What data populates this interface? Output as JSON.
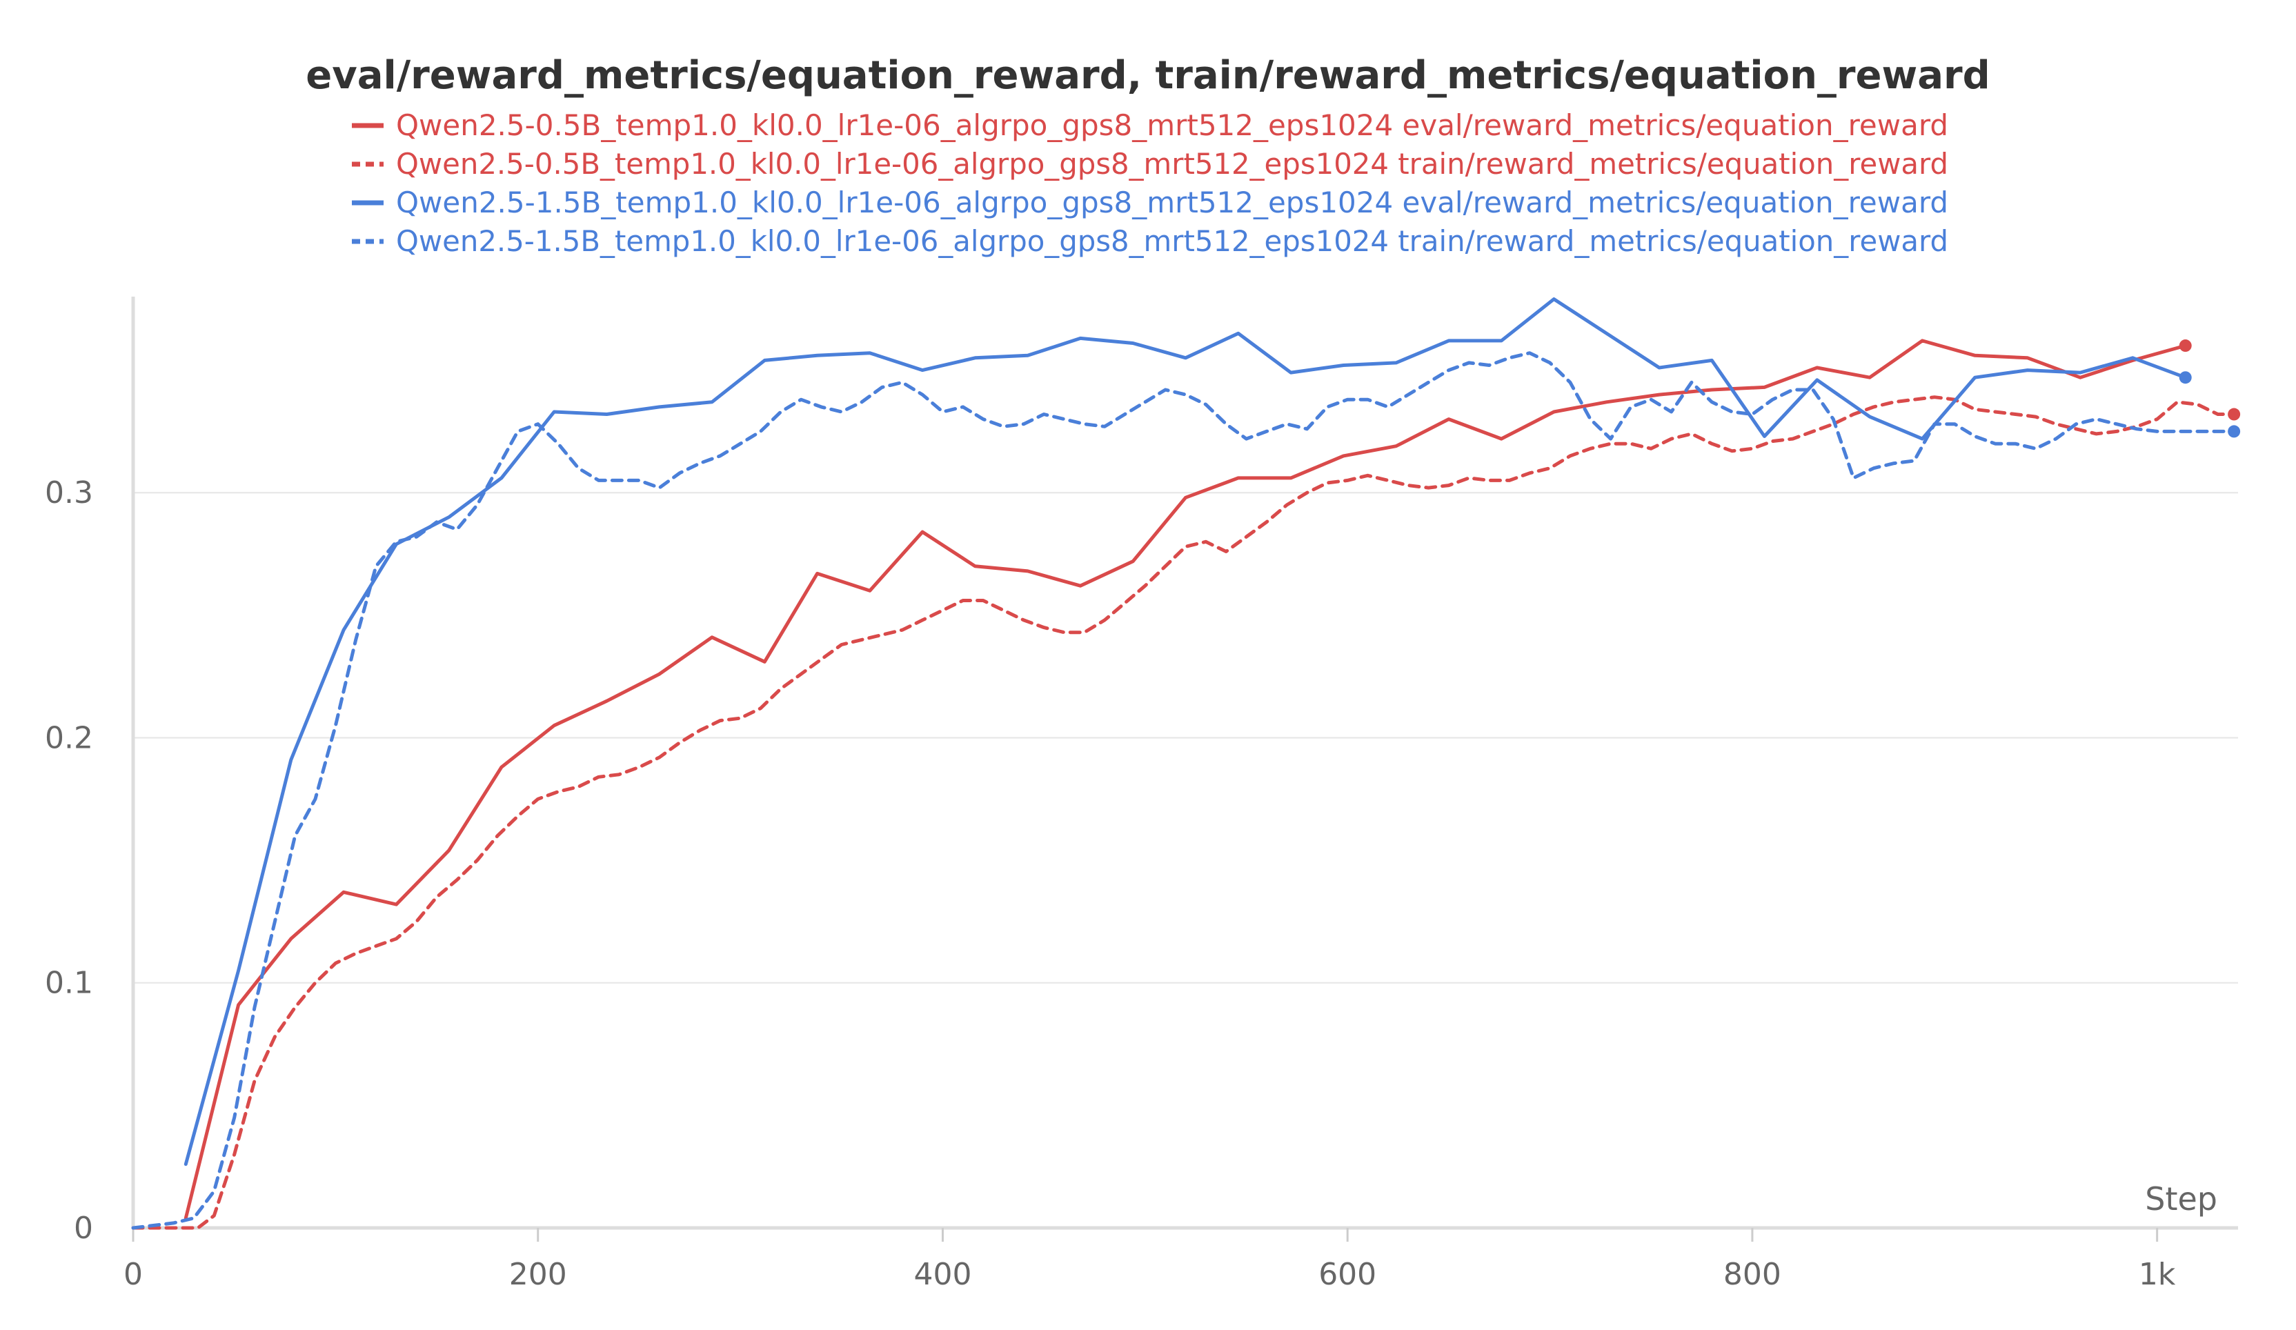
{
  "chart_data": {
    "type": "line",
    "title": "eval/reward_metrics/equation_reward, train/reward_metrics/equation_reward",
    "xlabel": "Step",
    "ylabel": "",
    "xlim": [
      0,
      1040
    ],
    "ylim": [
      0,
      0.38
    ],
    "x_ticks": [
      {
        "value": 0,
        "label": "0"
      },
      {
        "value": 200,
        "label": "200"
      },
      {
        "value": 400,
        "label": "400"
      },
      {
        "value": 600,
        "label": "600"
      },
      {
        "value": 800,
        "label": "800"
      },
      {
        "value": 1000,
        "label": "1k"
      }
    ],
    "y_ticks": [
      {
        "value": 0,
        "label": "0"
      },
      {
        "value": 0.1,
        "label": "0.1"
      },
      {
        "value": 0.2,
        "label": "0.2"
      },
      {
        "value": 0.3,
        "label": "0.3"
      }
    ],
    "grid": true,
    "legend_position": "top-center",
    "series": [
      {
        "name": "Qwen2.5-0.5B_temp1.0_kl0.0_lr1e-06_algrpo_gps8_mrt512_eps1024 eval/reward_metrics/equation_reward",
        "color": "#d94a4a",
        "dash": "solid",
        "end_marker": true,
        "x": [
          26,
          52,
          78,
          104,
          130,
          156,
          182,
          208,
          234,
          260,
          286,
          312,
          338,
          364,
          390,
          416,
          442,
          468,
          494,
          520,
          546,
          572,
          598,
          624,
          650,
          676,
          702,
          728,
          754,
          780,
          806,
          832,
          858,
          884,
          910,
          936,
          962,
          988,
          1014
        ],
        "y": [
          0.004,
          0.091,
          0.118,
          0.137,
          0.132,
          0.154,
          0.188,
          0.205,
          0.215,
          0.226,
          0.241,
          0.231,
          0.267,
          0.26,
          0.284,
          0.27,
          0.268,
          0.262,
          0.272,
          0.298,
          0.306,
          0.306,
          0.315,
          0.319,
          0.33,
          0.322,
          0.333,
          0.337,
          0.34,
          0.342,
          0.343,
          0.351,
          0.347,
          0.362,
          0.356,
          0.355,
          0.347,
          0.354,
          0.36
        ]
      },
      {
        "name": "Qwen2.5-0.5B_temp1.0_kl0.0_lr1e-06_algrpo_gps8_mrt512_eps1024 train/reward_metrics/equation_reward",
        "color": "#d94a4a",
        "dash": "dashed",
        "end_marker": true,
        "x": [
          0,
          20,
          32,
          40,
          50,
          60,
          70,
          80,
          90,
          100,
          110,
          120,
          130,
          140,
          150,
          160,
          170,
          180,
          190,
          200,
          210,
          220,
          230,
          240,
          250,
          260,
          270,
          280,
          290,
          300,
          310,
          320,
          330,
          340,
          350,
          360,
          370,
          380,
          390,
          400,
          410,
          420,
          430,
          440,
          450,
          460,
          470,
          480,
          490,
          500,
          510,
          520,
          530,
          540,
          550,
          560,
          570,
          580,
          590,
          600,
          610,
          620,
          630,
          640,
          650,
          660,
          670,
          680,
          690,
          700,
          710,
          720,
          730,
          740,
          750,
          760,
          770,
          780,
          790,
          800,
          810,
          820,
          830,
          840,
          850,
          860,
          870,
          880,
          890,
          900,
          910,
          920,
          930,
          940,
          950,
          960,
          970,
          980,
          990,
          1000,
          1010,
          1020,
          1030,
          1038
        ],
        "y": [
          0.0,
          0.0,
          0.0,
          0.005,
          0.03,
          0.06,
          0.078,
          0.09,
          0.1,
          0.108,
          0.112,
          0.115,
          0.118,
          0.125,
          0.135,
          0.142,
          0.15,
          0.16,
          0.168,
          0.175,
          0.178,
          0.18,
          0.184,
          0.185,
          0.188,
          0.192,
          0.198,
          0.203,
          0.207,
          0.208,
          0.212,
          0.22,
          0.226,
          0.232,
          0.238,
          0.24,
          0.242,
          0.244,
          0.248,
          0.252,
          0.256,
          0.256,
          0.252,
          0.248,
          0.245,
          0.243,
          0.243,
          0.248,
          0.255,
          0.262,
          0.27,
          0.278,
          0.28,
          0.276,
          0.282,
          0.288,
          0.295,
          0.3,
          0.304,
          0.305,
          0.307,
          0.305,
          0.303,
          0.302,
          0.303,
          0.306,
          0.305,
          0.305,
          0.308,
          0.31,
          0.315,
          0.318,
          0.32,
          0.32,
          0.318,
          0.322,
          0.324,
          0.32,
          0.317,
          0.318,
          0.321,
          0.322,
          0.325,
          0.328,
          0.332,
          0.335,
          0.337,
          0.338,
          0.339,
          0.338,
          0.334,
          0.333,
          0.332,
          0.331,
          0.328,
          0.326,
          0.324,
          0.325,
          0.327,
          0.33,
          0.337,
          0.336,
          0.332,
          0.332
        ]
      },
      {
        "name": "Qwen2.5-1.5B_temp1.0_kl0.0_lr1e-06_algrpo_gps8_mrt512_eps1024 eval/reward_metrics/equation_reward",
        "color": "#4a7fd9",
        "dash": "solid",
        "end_marker": true,
        "x": [
          26,
          52,
          78,
          104,
          130,
          156,
          182,
          208,
          234,
          260,
          286,
          312,
          338,
          364,
          390,
          416,
          442,
          468,
          494,
          520,
          546,
          572,
          598,
          624,
          650,
          676,
          702,
          728,
          754,
          780,
          806,
          832,
          858,
          884,
          910,
          936,
          962,
          988,
          1014
        ],
        "y": [
          0.026,
          0.105,
          0.191,
          0.244,
          0.279,
          0.29,
          0.306,
          0.333,
          0.332,
          0.335,
          0.337,
          0.354,
          0.356,
          0.357,
          0.35,
          0.355,
          0.356,
          0.363,
          0.361,
          0.355,
          0.365,
          0.349,
          0.352,
          0.353,
          0.362,
          0.362,
          0.379,
          0.365,
          0.351,
          0.354,
          0.323,
          0.346,
          0.331,
          0.322,
          0.347,
          0.35,
          0.349,
          0.355,
          0.347
        ]
      },
      {
        "name": "Qwen2.5-1.5B_temp1.0_kl0.0_lr1e-06_algrpo_gps8_mrt512_eps1024 train/reward_metrics/equation_reward",
        "color": "#4a7fd9",
        "dash": "dashed",
        "end_marker": true,
        "x": [
          0,
          20,
          30,
          40,
          50,
          60,
          70,
          80,
          90,
          100,
          110,
          120,
          130,
          140,
          150,
          160,
          170,
          180,
          190,
          200,
          210,
          220,
          230,
          240,
          250,
          260,
          270,
          280,
          290,
          300,
          310,
          320,
          330,
          340,
          350,
          360,
          370,
          380,
          390,
          400,
          410,
          420,
          430,
          440,
          450,
          460,
          470,
          480,
          490,
          500,
          510,
          520,
          530,
          540,
          550,
          560,
          570,
          580,
          590,
          600,
          610,
          620,
          630,
          640,
          650,
          660,
          670,
          680,
          690,
          700,
          710,
          720,
          730,
          740,
          750,
          760,
          770,
          780,
          790,
          800,
          810,
          820,
          830,
          840,
          850,
          860,
          870,
          880,
          890,
          900,
          910,
          920,
          930,
          940,
          950,
          960,
          970,
          980,
          990,
          1000,
          1010,
          1020,
          1030,
          1038
        ],
        "y": [
          0.0,
          0.002,
          0.004,
          0.015,
          0.045,
          0.09,
          0.125,
          0.16,
          0.175,
          0.205,
          0.24,
          0.27,
          0.28,
          0.282,
          0.288,
          0.285,
          0.295,
          0.31,
          0.325,
          0.328,
          0.32,
          0.31,
          0.305,
          0.305,
          0.305,
          0.302,
          0.308,
          0.312,
          0.315,
          0.32,
          0.325,
          0.333,
          0.338,
          0.335,
          0.333,
          0.337,
          0.343,
          0.345,
          0.34,
          0.333,
          0.335,
          0.33,
          0.327,
          0.328,
          0.332,
          0.33,
          0.328,
          0.327,
          0.332,
          0.337,
          0.342,
          0.34,
          0.336,
          0.328,
          0.322,
          0.325,
          0.328,
          0.326,
          0.335,
          0.338,
          0.338,
          0.335,
          0.34,
          0.345,
          0.35,
          0.353,
          0.352,
          0.355,
          0.357,
          0.353,
          0.345,
          0.33,
          0.322,
          0.335,
          0.338,
          0.333,
          0.345,
          0.337,
          0.333,
          0.332,
          0.338,
          0.342,
          0.342,
          0.33,
          0.306,
          0.31,
          0.312,
          0.313,
          0.328,
          0.328,
          0.323,
          0.32,
          0.32,
          0.318,
          0.322,
          0.328,
          0.33,
          0.328,
          0.326,
          0.325,
          0.325,
          0.325,
          0.325,
          0.325
        ]
      }
    ]
  }
}
